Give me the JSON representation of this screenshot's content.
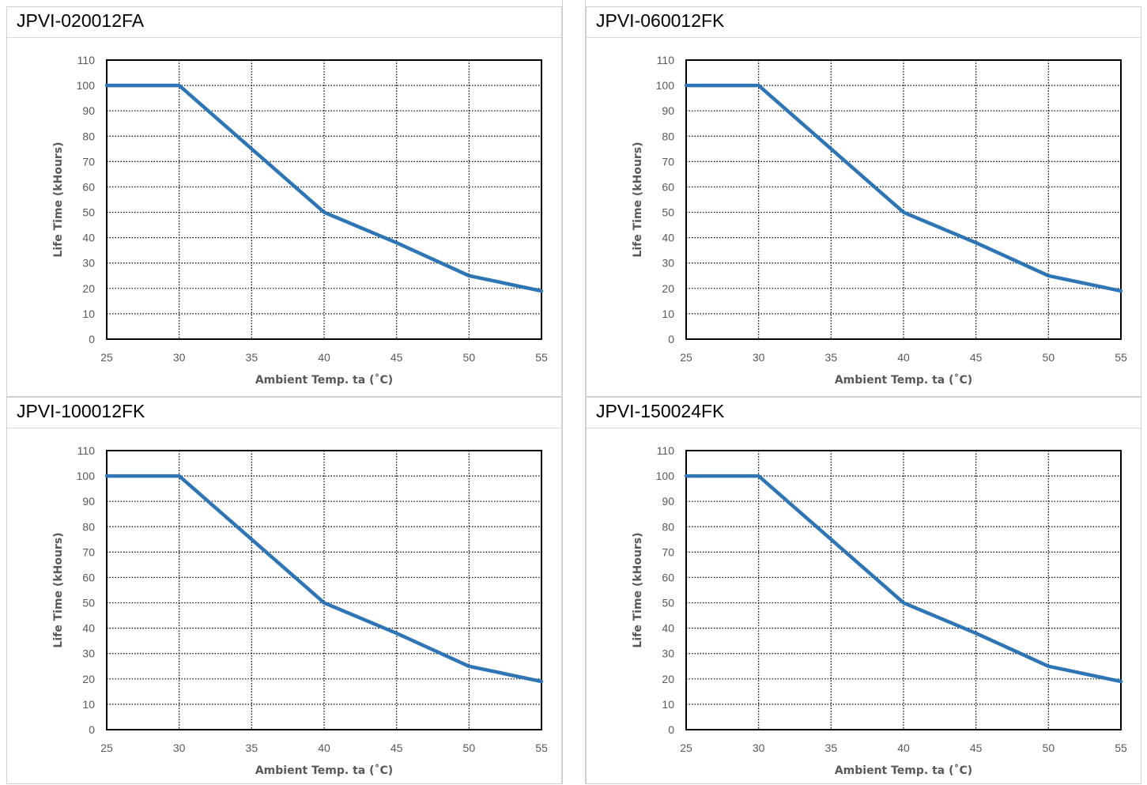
{
  "colors": {
    "series": "#2e75b6",
    "grid": "#000000",
    "tick_text": "#595959",
    "cell_border": "#d0d0d0"
  },
  "panels": [
    {
      "title": "JPVI-020012FA"
    },
    {
      "title": "JPVI-060012FK"
    },
    {
      "title": "JPVI-100012FK"
    },
    {
      "title": "JPVI-150024FK"
    }
  ],
  "chart_data": [
    {
      "type": "line",
      "title": "JPVI-020012FA",
      "xlabel": "Ambient Temp. ta (˚C)",
      "ylabel": "Life Time (kHours)",
      "xlim": [
        25,
        55
      ],
      "ylim": [
        0,
        110
      ],
      "xticks": [
        25,
        30,
        35,
        40,
        45,
        50,
        55
      ],
      "yticks": [
        0,
        10,
        20,
        30,
        40,
        50,
        60,
        70,
        80,
        90,
        100,
        110
      ],
      "grid": true,
      "series": [
        {
          "x": [
            25,
            30,
            35,
            40,
            45,
            50,
            55
          ],
          "y": [
            100,
            100,
            75,
            50,
            38,
            25,
            19
          ]
        }
      ]
    },
    {
      "type": "line",
      "title": "JPVI-060012FK",
      "xlabel": "Ambient Temp. ta (˚C)",
      "ylabel": "Life Time (kHours)",
      "xlim": [
        25,
        55
      ],
      "ylim": [
        0,
        110
      ],
      "xticks": [
        25,
        30,
        35,
        40,
        45,
        50,
        55
      ],
      "yticks": [
        0,
        10,
        20,
        30,
        40,
        50,
        60,
        70,
        80,
        90,
        100,
        110
      ],
      "grid": true,
      "series": [
        {
          "x": [
            25,
            30,
            35,
            40,
            45,
            50,
            55
          ],
          "y": [
            100,
            100,
            75,
            50,
            38,
            25,
            19
          ]
        }
      ]
    },
    {
      "type": "line",
      "title": "JPVI-100012FK",
      "xlabel": "Ambient Temp. ta (˚C)",
      "ylabel": "Life Time (kHours)",
      "xlim": [
        25,
        55
      ],
      "ylim": [
        0,
        110
      ],
      "xticks": [
        25,
        30,
        35,
        40,
        45,
        50,
        55
      ],
      "yticks": [
        0,
        10,
        20,
        30,
        40,
        50,
        60,
        70,
        80,
        90,
        100,
        110
      ],
      "grid": true,
      "series": [
        {
          "x": [
            25,
            30,
            35,
            40,
            45,
            50,
            55
          ],
          "y": [
            100,
            100,
            75,
            50,
            38,
            25,
            19
          ]
        }
      ]
    },
    {
      "type": "line",
      "title": "JPVI-150024FK",
      "xlabel": "Ambient Temp. ta (˚C)",
      "ylabel": "Life Time (kHours)",
      "xlim": [
        25,
        55
      ],
      "ylim": [
        0,
        110
      ],
      "xticks": [
        25,
        30,
        35,
        40,
        45,
        50,
        55
      ],
      "yticks": [
        0,
        10,
        20,
        30,
        40,
        50,
        60,
        70,
        80,
        90,
        100,
        110
      ],
      "grid": true,
      "series": [
        {
          "x": [
            25,
            30,
            35,
            40,
            45,
            50,
            55
          ],
          "y": [
            100,
            100,
            75,
            50,
            38,
            25,
            19
          ]
        }
      ]
    }
  ]
}
